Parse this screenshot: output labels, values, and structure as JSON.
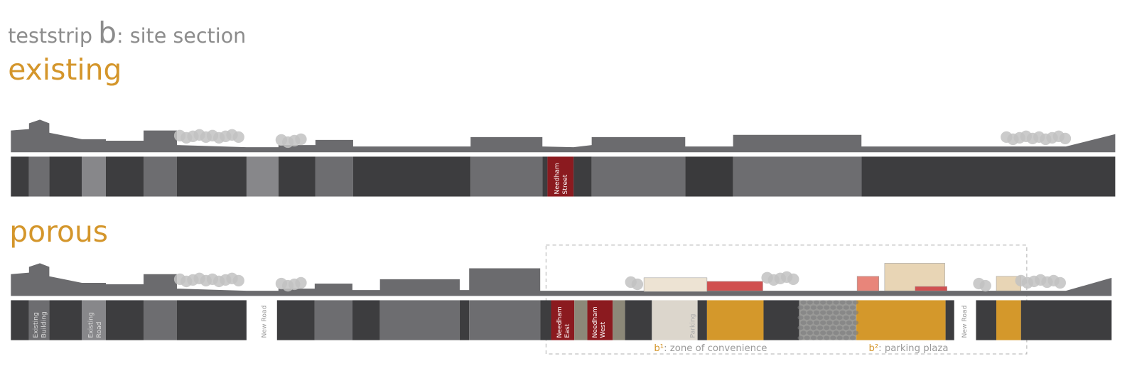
{
  "header": {
    "title": {
      "prefix": "teststrip",
      "letter": "b",
      "suffix": ": site section"
    }
  },
  "sections": [
    {
      "title": "existing",
      "labels": [
        {
          "lines": [
            "Needham",
            "Street"
          ]
        }
      ]
    },
    {
      "title": "porous",
      "labels": [
        {
          "lines": [
            "Existing",
            "Building"
          ]
        },
        {
          "lines": [
            "Existing",
            "Road"
          ]
        },
        {
          "lines": [
            "New Road"
          ]
        },
        {
          "lines": [
            "Needham",
            "East"
          ]
        },
        {
          "lines": [
            "Needham",
            "West"
          ]
        },
        {
          "lines": [
            "Parking"
          ]
        },
        {
          "lines": [
            "New Road"
          ]
        }
      ]
    }
  ],
  "annotations": [
    {
      "marker": "b¹",
      "text": ": zone of convenience"
    },
    {
      "marker": "b²",
      "text": ": parking plaza"
    }
  ]
}
